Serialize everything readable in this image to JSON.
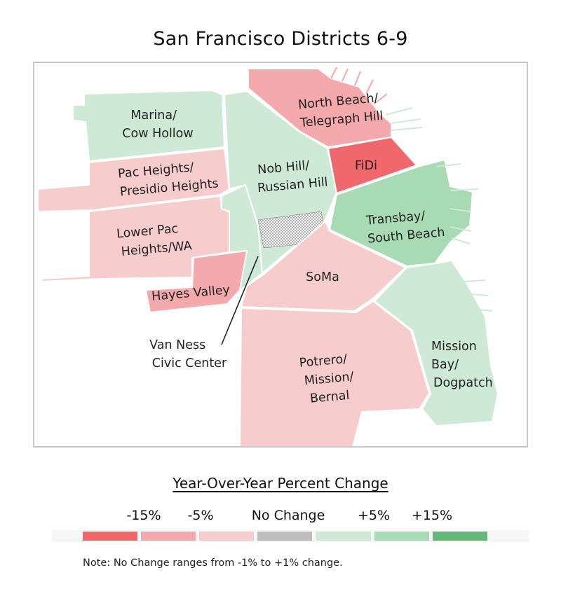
{
  "title": "San Francisco Districts 6-9",
  "colors": {
    "neg15": "#f0676c",
    "neg5": "#f4a9ac",
    "neg1": "#f7cccc",
    "none": "#bebebe",
    "pos1": "#cfe9d7",
    "pos5": "#a8dbb4",
    "pos15": "#63b87a"
  },
  "districts": [
    {
      "name": "Marina/ Cow Hollow",
      "lines": [
        "Marina/",
        "Cow Hollow"
      ],
      "change": "positive-small",
      "color": "#cfe9d7"
    },
    {
      "name": "Pac Heights/ Presidio Heights",
      "lines": [
        "Pac Heights/",
        "Presidio Heights"
      ],
      "change": "negative-small",
      "color": "#f7cccc"
    },
    {
      "name": "Lower Pac Heights/WA",
      "lines": [
        "Lower Pac",
        "Heights/WA"
      ],
      "change": "negative-small",
      "color": "#f7cccc"
    },
    {
      "name": "Hayes Valley",
      "lines": [
        "Hayes Valley"
      ],
      "change": "negative-5",
      "color": "#f4a9ac"
    },
    {
      "name": "Van Ness Civic Center",
      "lines": [
        "Van Ness",
        "Civic Center"
      ],
      "change": "positive-small",
      "color": "#cfe9d7"
    },
    {
      "name": "Nob Hill/ Russian Hill",
      "lines": [
        "Nob Hill/",
        "Russian Hill"
      ],
      "change": "positive-small",
      "color": "#cfe9d7"
    },
    {
      "name": "North Beach/ Telegraph Hill",
      "lines": [
        "North Beach/",
        "Telegraph Hill"
      ],
      "change": "negative-5",
      "color": "#f4a9ac"
    },
    {
      "name": "FiDi",
      "lines": [
        "FiDi"
      ],
      "change": "negative-15",
      "color": "#f0676c"
    },
    {
      "name": "Transbay/ South Beach",
      "lines": [
        "Transbay/",
        "South Beach"
      ],
      "change": "positive-5",
      "color": "#a8dbb4"
    },
    {
      "name": "SoMa",
      "lines": [
        "SoMa"
      ],
      "change": "negative-small",
      "color": "#f7cccc"
    },
    {
      "name": "Potrero/ Mission/ Bernal",
      "lines": [
        "Potrero/",
        "Mission/",
        "Bernal"
      ],
      "change": "negative-small",
      "color": "#f7cccc"
    },
    {
      "name": "Mission Bay/ Dogpatch",
      "lines": [
        "Mission",
        "Bay/",
        "Dogpatch"
      ],
      "change": "positive-small",
      "color": "#cfe9d7"
    }
  ],
  "legend": {
    "title": "Year-Over-Year Percent Change",
    "ticks": [
      "-15%",
      "-5%",
      "No Change",
      "+5%",
      "+15%"
    ],
    "note": "Note: No Change ranges from -1% to +1% change."
  }
}
